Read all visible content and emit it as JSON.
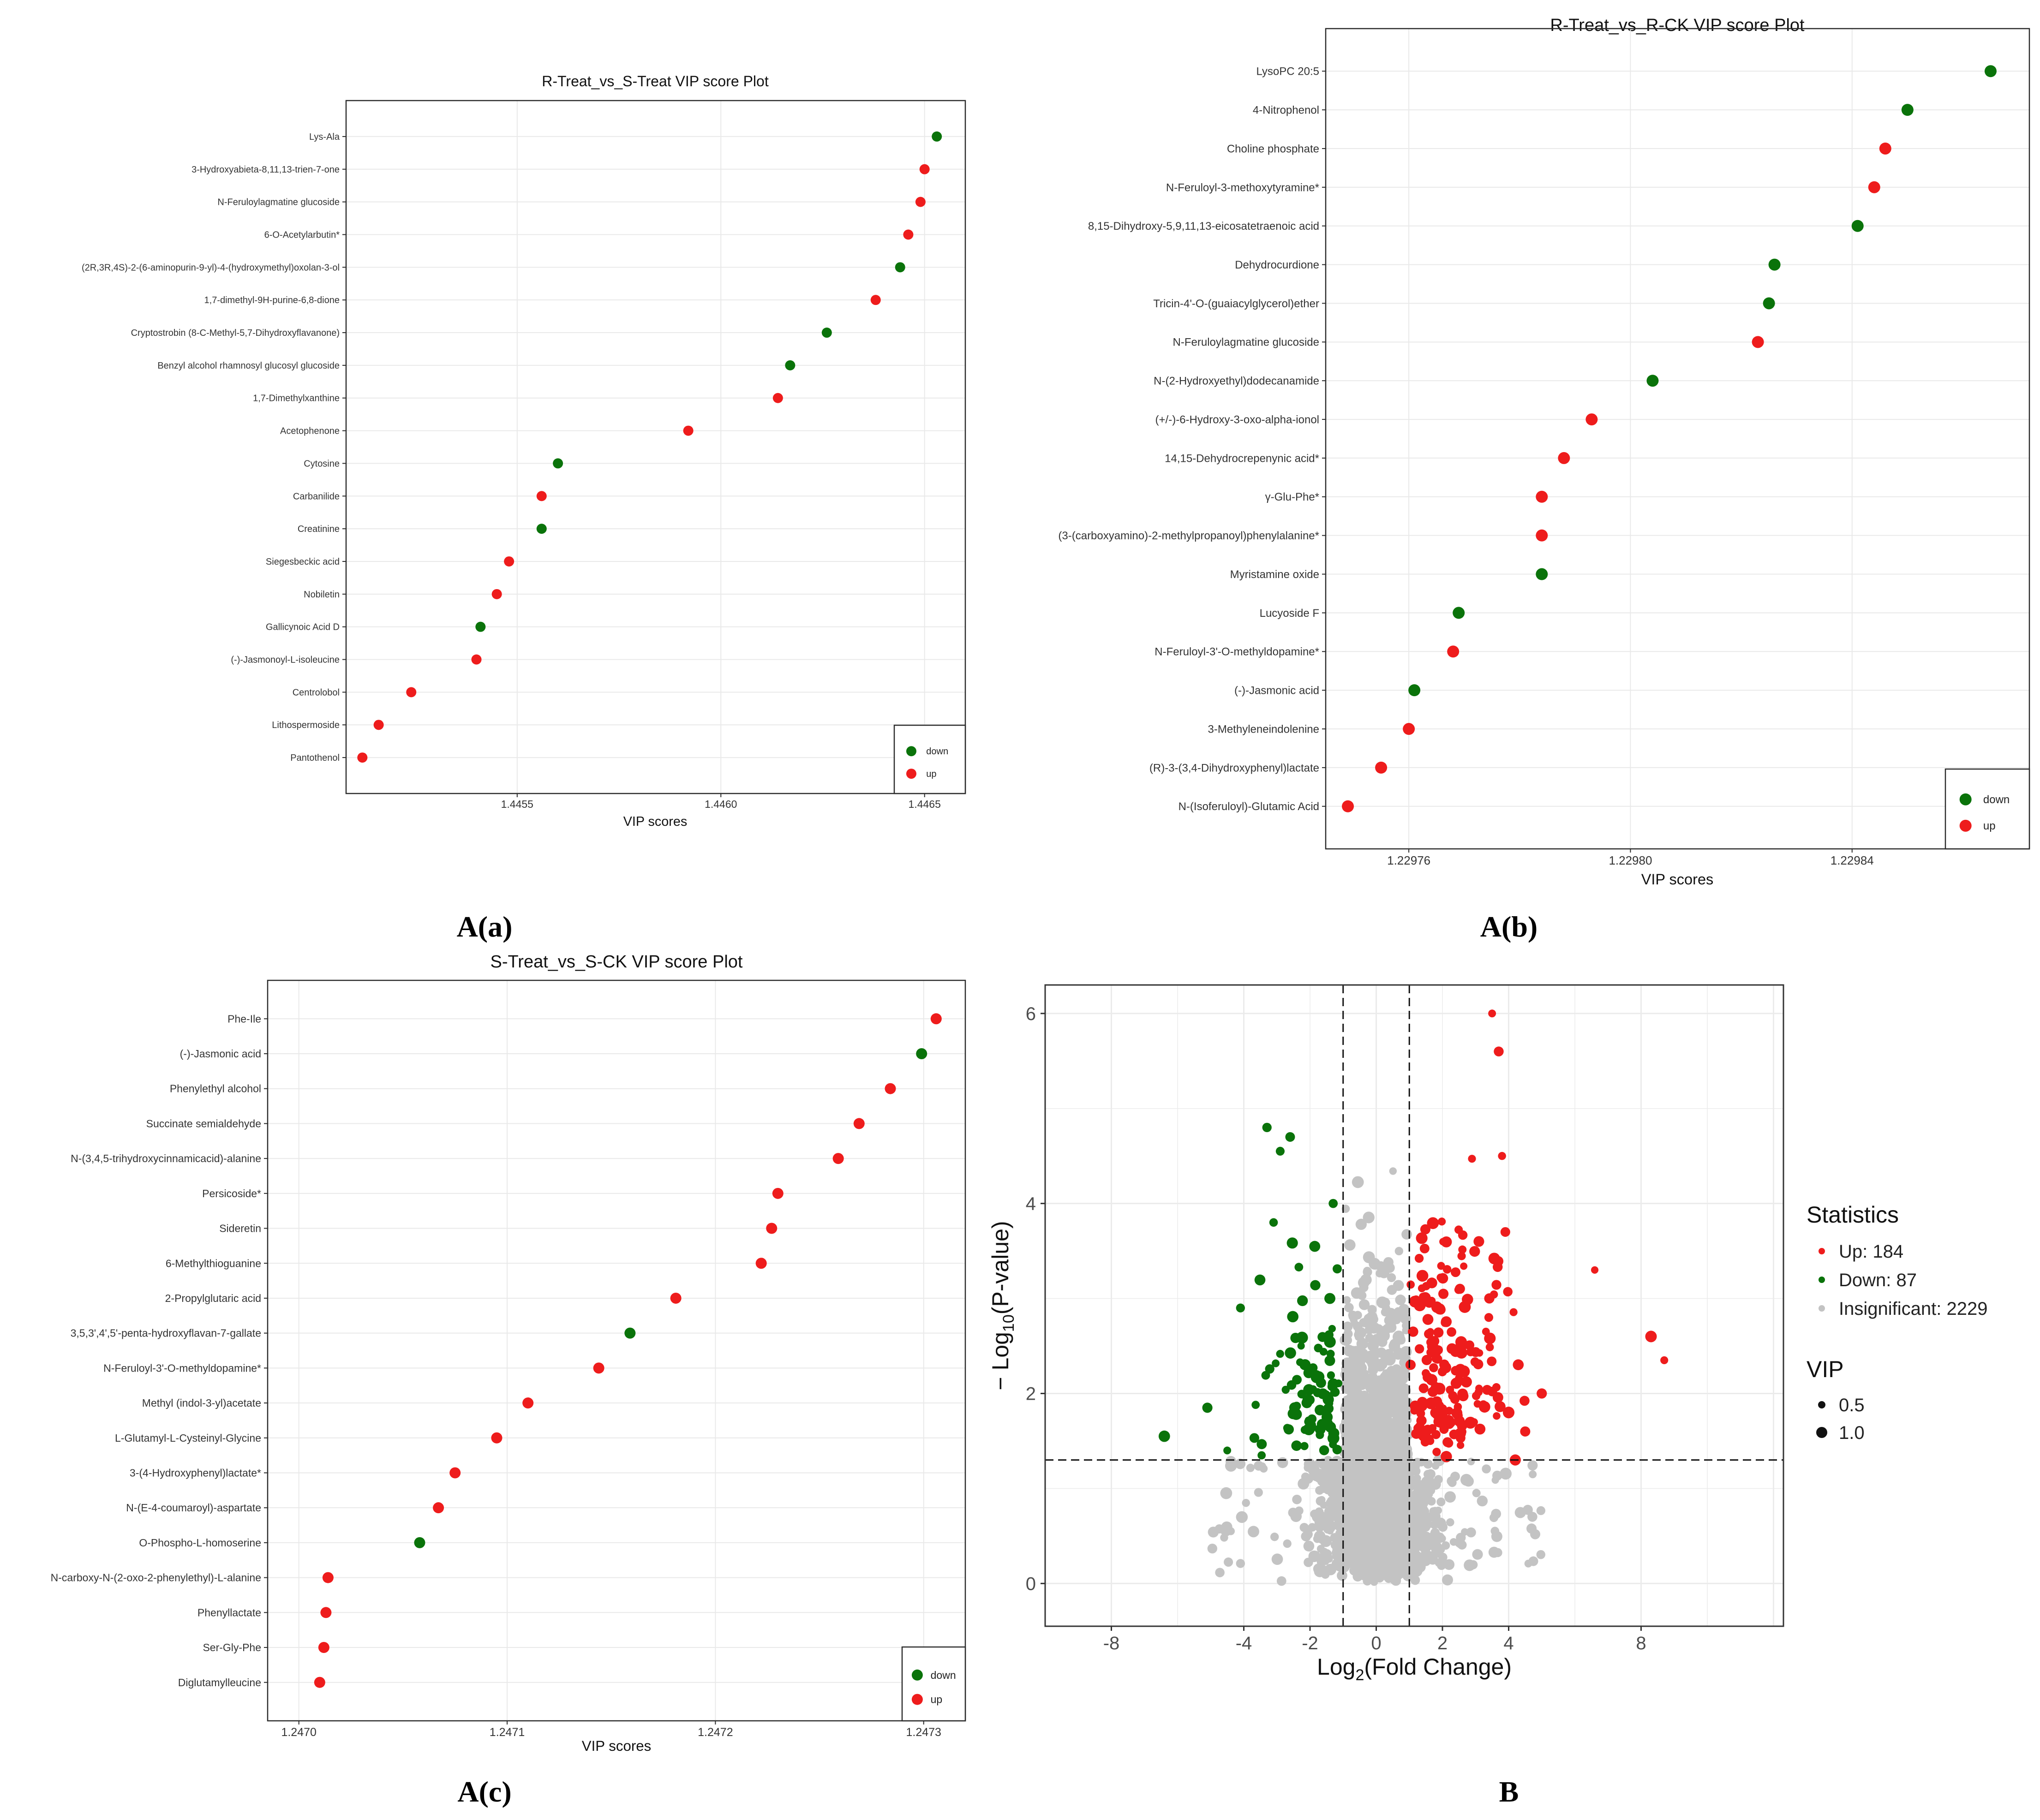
{
  "colors": {
    "up": "#ee1c1c",
    "down": "#0a730a",
    "insig": "#c3c3c3",
    "grid": "#e9e9e9",
    "frame": "#2b2b2b"
  },
  "panel_labels": {
    "a": "A(a)",
    "b": "A(b)",
    "c": "A(c)",
    "d": "B"
  },
  "chart_data": [
    {
      "id": "a",
      "type": "scatter",
      "title": "R-Treat_vs_S-Treat VIP score Plot",
      "xlabel": "VIP scores",
      "ylabel": "",
      "xlim": [
        1.44508,
        1.4466
      ],
      "xticks": [
        1.4455,
        1.446,
        1.4465
      ],
      "xtick_labels": [
        "1.4455",
        "1.4460",
        "1.4465"
      ],
      "legend": {
        "position": "bottom-right",
        "entries": [
          {
            "label": "down",
            "color": "down"
          },
          {
            "label": "up",
            "color": "up"
          }
        ]
      },
      "points": [
        {
          "name": "Lys-Ala",
          "vip": 1.44653,
          "reg": "down"
        },
        {
          "name": "3-Hydroxyabieta-8,11,13-trien-7-one",
          "vip": 1.4465,
          "reg": "up"
        },
        {
          "name": "N-Feruloylagmatine glucoside",
          "vip": 1.44649,
          "reg": "up"
        },
        {
          "name": "6-O-Acetylarbutin*",
          "vip": 1.44646,
          "reg": "up"
        },
        {
          "name": "(2R,3R,4S)-2-(6-aminopurin-9-yl)-4-(hydroxymethyl)oxolan-3-ol",
          "vip": 1.44644,
          "reg": "down"
        },
        {
          "name": "1,7-dimethyl-9H-purine-6,8-dione",
          "vip": 1.44638,
          "reg": "up"
        },
        {
          "name": "Cryptostrobin (8-C-Methyl-5,7-Dihydroxyflavanone)",
          "vip": 1.44626,
          "reg": "down"
        },
        {
          "name": "Benzyl alcohol rhamnosyl glucosyl glucoside",
          "vip": 1.44617,
          "reg": "down"
        },
        {
          "name": "1,7-Dimethylxanthine",
          "vip": 1.44614,
          "reg": "up"
        },
        {
          "name": "Acetophenone",
          "vip": 1.44592,
          "reg": "up"
        },
        {
          "name": "Cytosine",
          "vip": 1.4456,
          "reg": "down"
        },
        {
          "name": "Carbanilide",
          "vip": 1.44556,
          "reg": "up"
        },
        {
          "name": "Creatinine",
          "vip": 1.44556,
          "reg": "down"
        },
        {
          "name": "Siegesbeckic acid",
          "vip": 1.44548,
          "reg": "up"
        },
        {
          "name": "Nobiletin",
          "vip": 1.44545,
          "reg": "up"
        },
        {
          "name": "Gallicynoic Acid D",
          "vip": 1.44541,
          "reg": "down"
        },
        {
          "name": "(-)-Jasmonoyl-L-isoleucine",
          "vip": 1.4454,
          "reg": "up"
        },
        {
          "name": "Centrolobol",
          "vip": 1.44524,
          "reg": "up"
        },
        {
          "name": "Lithospermoside",
          "vip": 1.44516,
          "reg": "up"
        },
        {
          "name": "Pantothenol",
          "vip": 1.44512,
          "reg": "up"
        }
      ]
    },
    {
      "id": "b",
      "type": "scatter",
      "title": "R-Treat_vs_R-CK VIP score Plot",
      "xlabel": "VIP scores",
      "ylabel": "",
      "xlim": [
        1.229745,
        1.229872
      ],
      "xticks": [
        1.22976,
        1.2298,
        1.22984
      ],
      "xtick_labels": [
        "1.22976",
        "1.22980",
        "1.22984"
      ],
      "legend": {
        "position": "bottom-right",
        "entries": [
          {
            "label": "down",
            "color": "down"
          },
          {
            "label": "up",
            "color": "up"
          }
        ]
      },
      "points": [
        {
          "name": "LysoPC 20:5",
          "vip": 1.229865,
          "reg": "down"
        },
        {
          "name": "4-Nitrophenol",
          "vip": 1.22985,
          "reg": "down"
        },
        {
          "name": "Choline phosphate",
          "vip": 1.229846,
          "reg": "up"
        },
        {
          "name": "N-Feruloyl-3-methoxytyramine*",
          "vip": 1.229844,
          "reg": "up"
        },
        {
          "name": "8,15-Dihydroxy-5,9,11,13-eicosatetraenoic acid",
          "vip": 1.229841,
          "reg": "down"
        },
        {
          "name": "Dehydrocurdione",
          "vip": 1.229826,
          "reg": "down"
        },
        {
          "name": "Tricin-4'-O-(guaiacylglycerol)ether",
          "vip": 1.229825,
          "reg": "down"
        },
        {
          "name": "N-Feruloylagmatine glucoside",
          "vip": 1.229823,
          "reg": "up"
        },
        {
          "name": "N-(2-Hydroxyethyl)dodecanamide",
          "vip": 1.229804,
          "reg": "down"
        },
        {
          "name": "(+/-)-6-Hydroxy-3-oxo-alpha-ionol",
          "vip": 1.229793,
          "reg": "up"
        },
        {
          "name": "14,15-Dehydrocrepenynic acid*",
          "vip": 1.229788,
          "reg": "up"
        },
        {
          "name": "γ-Glu-Phe*",
          "vip": 1.229784,
          "reg": "up"
        },
        {
          "name": "(3-(carboxyamino)-2-methylpropanoyl)phenylalanine*",
          "vip": 1.229784,
          "reg": "up"
        },
        {
          "name": "Myristamine oxide",
          "vip": 1.229784,
          "reg": "down"
        },
        {
          "name": "Lucyoside F",
          "vip": 1.229769,
          "reg": "down"
        },
        {
          "name": "N-Feruloyl-3'-O-methyldopamine*",
          "vip": 1.229768,
          "reg": "up"
        },
        {
          "name": "(-)-Jasmonic acid",
          "vip": 1.229761,
          "reg": "down"
        },
        {
          "name": "3-Methyleneindolenine",
          "vip": 1.22976,
          "reg": "up"
        },
        {
          "name": "(R)-3-(3,4-Dihydroxyphenyl)lactate",
          "vip": 1.229755,
          "reg": "up"
        },
        {
          "name": "N-(Isoferuloyl)-Glutamic Acid",
          "vip": 1.229749,
          "reg": "up"
        }
      ]
    },
    {
      "id": "c",
      "type": "scatter",
      "title": "S-Treat_vs_S-CK VIP score Plot",
      "xlabel": "VIP scores",
      "ylabel": "",
      "xlim": [
        1.246985,
        1.24732
      ],
      "xticks": [
        1.247,
        1.2471,
        1.2472,
        1.2473
      ],
      "xtick_labels": [
        "1.2470",
        "1.2471",
        "1.2472",
        "1.2473"
      ],
      "legend": {
        "position": "bottom-right",
        "entries": [
          {
            "label": "down",
            "color": "down"
          },
          {
            "label": "up",
            "color": "up"
          }
        ]
      },
      "points": [
        {
          "name": "Phe-Ile",
          "vip": 1.247306,
          "reg": "up"
        },
        {
          "name": "(-)-Jasmonic acid",
          "vip": 1.247299,
          "reg": "down"
        },
        {
          "name": "Phenylethyl alcohol",
          "vip": 1.247284,
          "reg": "up"
        },
        {
          "name": "Succinate semialdehyde",
          "vip": 1.247269,
          "reg": "up"
        },
        {
          "name": "N-(3,4,5-trihydroxycinnamicacid)-alanine",
          "vip": 1.247259,
          "reg": "up"
        },
        {
          "name": "Persicoside*",
          "vip": 1.24723,
          "reg": "up"
        },
        {
          "name": "Sideretin",
          "vip": 1.247227,
          "reg": "up"
        },
        {
          "name": "6-Methylthioguanine",
          "vip": 1.247222,
          "reg": "up"
        },
        {
          "name": "2-Propylglutaric acid",
          "vip": 1.247181,
          "reg": "up"
        },
        {
          "name": "3,5,3',4',5'-penta-hydroxyflavan-7-gallate",
          "vip": 1.247159,
          "reg": "down"
        },
        {
          "name": "N-Feruloyl-3'-O-methyldopamine*",
          "vip": 1.247144,
          "reg": "up"
        },
        {
          "name": "Methyl (indol-3-yl)acetate",
          "vip": 1.24711,
          "reg": "up"
        },
        {
          "name": "L-Glutamyl-L-Cysteinyl-Glycine",
          "vip": 1.247095,
          "reg": "up"
        },
        {
          "name": "3-(4-Hydroxyphenyl)lactate*",
          "vip": 1.247075,
          "reg": "up"
        },
        {
          "name": "N-(E-4-coumaroyl)-aspartate",
          "vip": 1.247067,
          "reg": "up"
        },
        {
          "name": "O-Phospho-L-homoserine",
          "vip": 1.247058,
          "reg": "down"
        },
        {
          "name": "N-carboxy-N-(2-oxo-2-phenylethyl)-L-alanine",
          "vip": 1.247014,
          "reg": "up"
        },
        {
          "name": "Phenyllactate",
          "vip": 1.247013,
          "reg": "up"
        },
        {
          "name": "Ser-Gly-Phe",
          "vip": 1.247012,
          "reg": "up"
        },
        {
          "name": "Diglutamylleucine",
          "vip": 1.24701,
          "reg": "up"
        }
      ]
    },
    {
      "id": "d",
      "type": "scatter",
      "subtype": "volcano",
      "title": "",
      "xlabel_pre": "Log",
      "xlabel_sub": "2",
      "xlabel_post": "(Fold Change)",
      "ylabel_pre": "− Log",
      "ylabel_sub": "10",
      "ylabel_post": "(P-value)",
      "xlim": [
        -10,
        12.3
      ],
      "ylim": [
        -0.45,
        6.3
      ],
      "xticks": [
        -8,
        -4,
        -2,
        0,
        2,
        4,
        8
      ],
      "xtick_labels": [
        "-8",
        "-4",
        "-2",
        "0",
        "2",
        "4",
        "8"
      ],
      "yticks": [
        0,
        2,
        4,
        6
      ],
      "ytick_labels": [
        "0",
        "2",
        "4",
        "6"
      ],
      "thresholds": {
        "log2fc": [
          -1,
          1
        ],
        "neglog10p": 1.3
      },
      "legend": {
        "position": "right",
        "statistics_title": "Statistics",
        "statistics": [
          {
            "label": "Up: 184",
            "color": "up"
          },
          {
            "label": "Down: 87",
            "color": "down"
          },
          {
            "label": "Insignificant: 2229",
            "color": "insig"
          }
        ],
        "vip_title": "VIP",
        "vip": [
          {
            "label": "0.5"
          },
          {
            "label": "1.0"
          }
        ]
      },
      "counts": {
        "up": 184,
        "down": 87,
        "insignificant": 2229
      },
      "highlight_points": [
        {
          "x": 3.5,
          "y": 6.0,
          "reg": "up"
        },
        {
          "x": 3.7,
          "y": 5.6,
          "reg": "up"
        },
        {
          "x": 3.8,
          "y": 4.5,
          "reg": "up"
        },
        {
          "x": 6.6,
          "y": 3.3,
          "reg": "up"
        },
        {
          "x": 8.3,
          "y": 2.6,
          "reg": "up"
        },
        {
          "x": 8.7,
          "y": 2.35,
          "reg": "up"
        },
        {
          "x": 3.9,
          "y": 3.7,
          "reg": "up"
        },
        {
          "x": 4.3,
          "y": 2.3,
          "reg": "up"
        },
        {
          "x": 4.0,
          "y": 1.8,
          "reg": "up"
        },
        {
          "x": 4.5,
          "y": 1.6,
          "reg": "up"
        },
        {
          "x": 5.0,
          "y": 2.0,
          "reg": "up"
        },
        {
          "x": 4.2,
          "y": 1.3,
          "reg": "up"
        },
        {
          "x": 3.1,
          "y": 3.6,
          "reg": "up"
        },
        {
          "x": 3.4,
          "y": 2.8,
          "reg": "up"
        },
        {
          "x": -3.3,
          "y": 4.8,
          "reg": "down"
        },
        {
          "x": -2.6,
          "y": 4.7,
          "reg": "down"
        },
        {
          "x": -2.9,
          "y": 4.55,
          "reg": "down"
        },
        {
          "x": -1.3,
          "y": 4.0,
          "reg": "down"
        },
        {
          "x": -3.1,
          "y": 3.8,
          "reg": "down"
        },
        {
          "x": -4.1,
          "y": 2.9,
          "reg": "down"
        },
        {
          "x": -5.1,
          "y": 1.85,
          "reg": "down"
        },
        {
          "x": -6.4,
          "y": 1.55,
          "reg": "down"
        },
        {
          "x": -4.5,
          "y": 1.4,
          "reg": "down"
        }
      ]
    }
  ]
}
